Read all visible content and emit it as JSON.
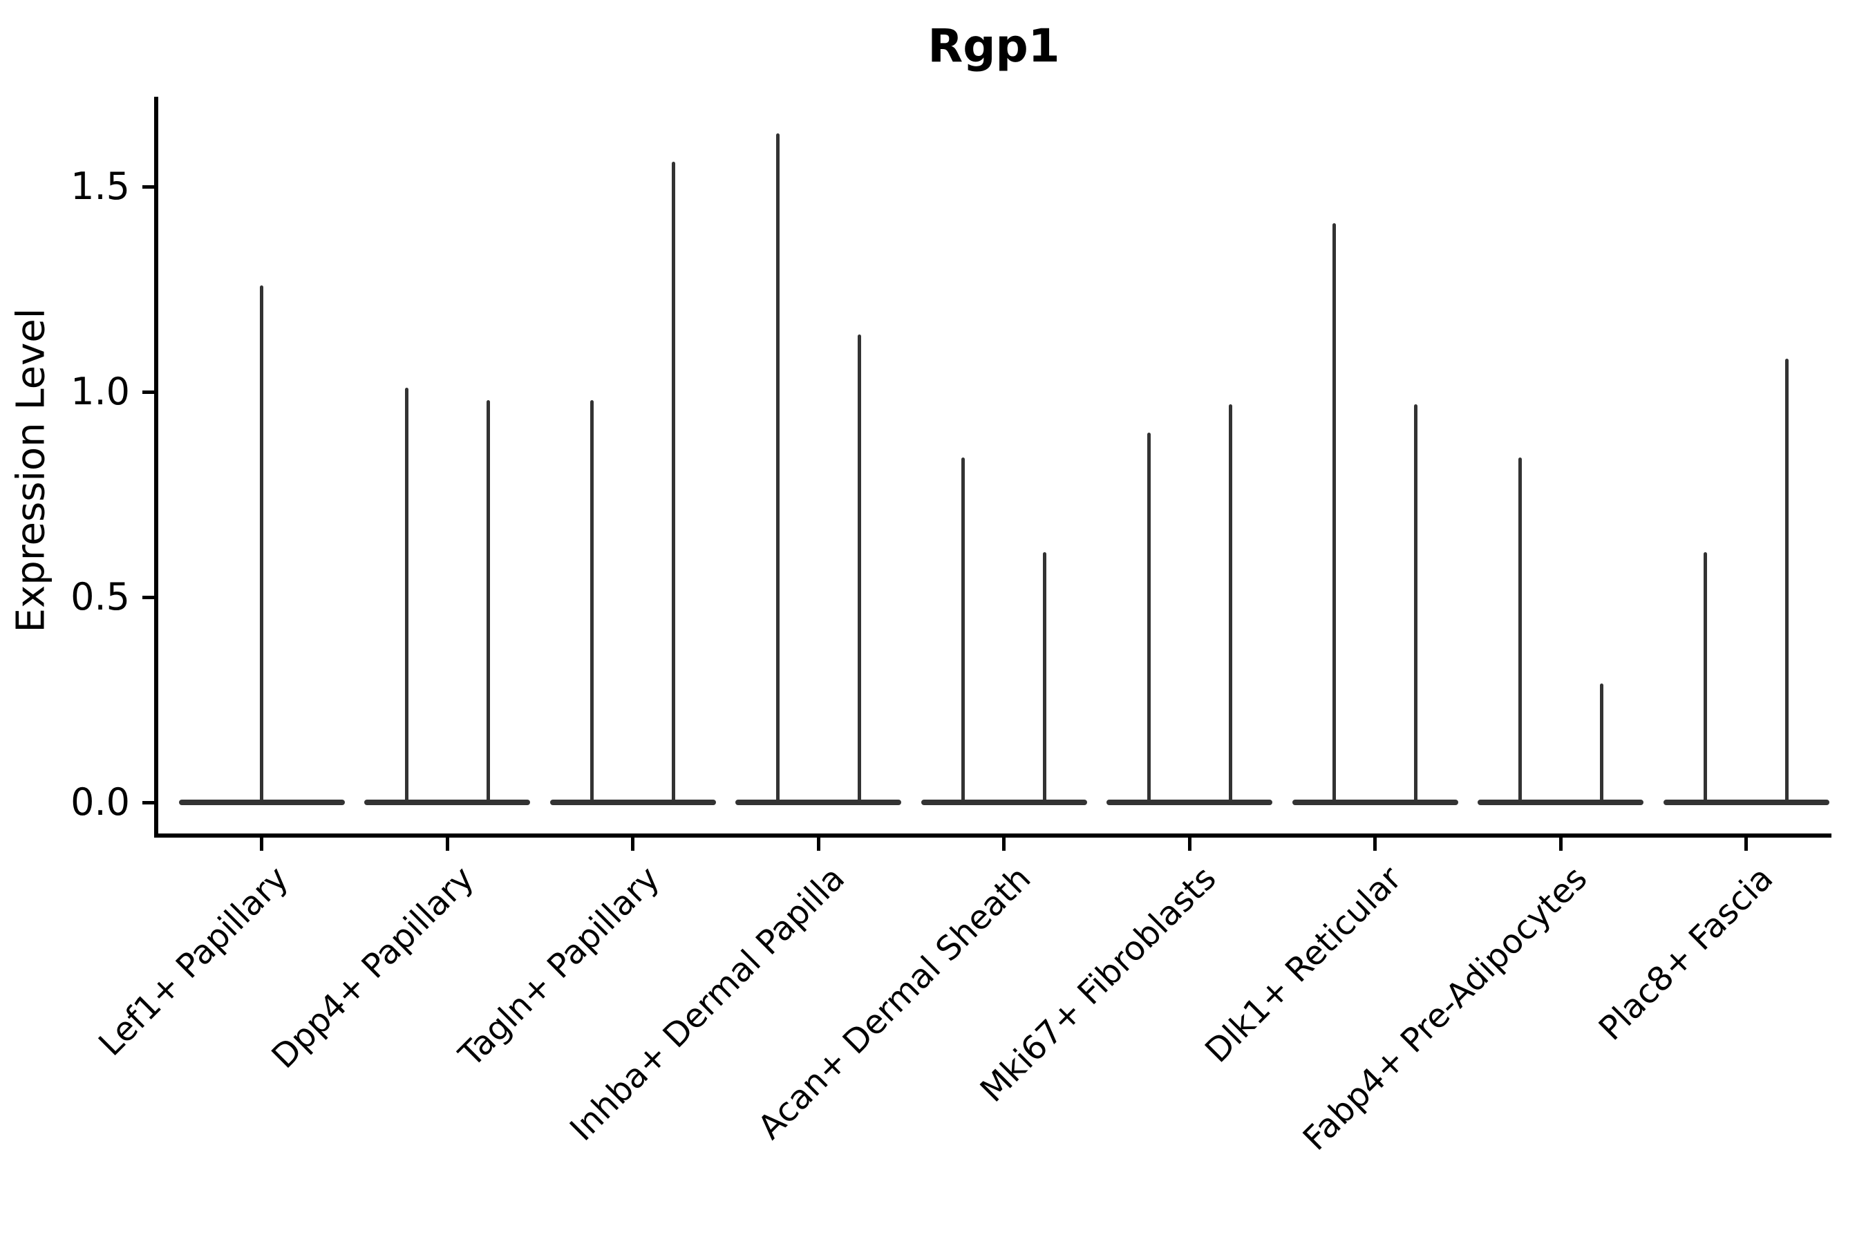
{
  "figure": {
    "title": "Rgp1",
    "ylabel": "Expression Level"
  },
  "chart_data": {
    "type": "violin",
    "title": "Rgp1",
    "xlabel": "",
    "ylabel": "Expression Level",
    "ylim": [
      -0.08,
      1.72
    ],
    "y_ticks": [
      0.0,
      0.5,
      1.0,
      1.5
    ],
    "y_tick_labels": [
      "0.0",
      "0.5",
      "1.0",
      "1.5"
    ],
    "grid": false,
    "legend": "none",
    "categories": [
      "Lef1+ Papillary",
      "Dpp4+ Papillary",
      "Tagln+ Papillary",
      "Inhba+ Dermal Papilla",
      "Acan+ Dermal Sheath",
      "Mki67+ Fibroblasts",
      "Dlk1+ Reticular",
      "Fabp4+ Pre-Adipocytes",
      "Plac8+ Fascia"
    ],
    "violins": [
      {
        "category": "Lef1+ Papillary",
        "spikes": [
          {
            "offset": "center",
            "max": 1.26
          }
        ]
      },
      {
        "category": "Dpp4+ Papillary",
        "spikes": [
          {
            "offset": "left",
            "max": 1.01
          },
          {
            "offset": "right",
            "max": 0.98
          }
        ]
      },
      {
        "category": "Tagln+ Papillary",
        "spikes": [
          {
            "offset": "left",
            "max": 0.98
          },
          {
            "offset": "right",
            "max": 1.56
          }
        ]
      },
      {
        "category": "Inhba+ Dermal Papilla",
        "spikes": [
          {
            "offset": "left",
            "max": 1.63
          },
          {
            "offset": "right",
            "max": 1.14
          }
        ]
      },
      {
        "category": "Acan+ Dermal Sheath",
        "spikes": [
          {
            "offset": "left",
            "max": 0.84
          },
          {
            "offset": "right",
            "max": 0.61
          }
        ]
      },
      {
        "category": "Mki67+ Fibroblasts",
        "spikes": [
          {
            "offset": "left",
            "max": 0.9
          },
          {
            "offset": "right",
            "max": 0.97
          }
        ]
      },
      {
        "category": "Dlk1+ Reticular",
        "spikes": [
          {
            "offset": "left",
            "max": 1.41
          },
          {
            "offset": "right",
            "max": 0.97
          }
        ]
      },
      {
        "category": "Fabp4+ Pre-Adipocytes",
        "spikes": [
          {
            "offset": "left",
            "max": 0.84
          },
          {
            "offset": "right",
            "max": 0.29
          }
        ]
      },
      {
        "category": "Plac8+ Fascia",
        "spikes": [
          {
            "offset": "left",
            "max": 0.61
          },
          {
            "offset": "right",
            "max": 1.08
          }
        ]
      }
    ],
    "baseline_value": 0.0,
    "colors": {
      "spike": "#333333",
      "violin_base": "#333333",
      "axis": "#000000",
      "text": "#000000",
      "background": "#ffffff"
    }
  }
}
